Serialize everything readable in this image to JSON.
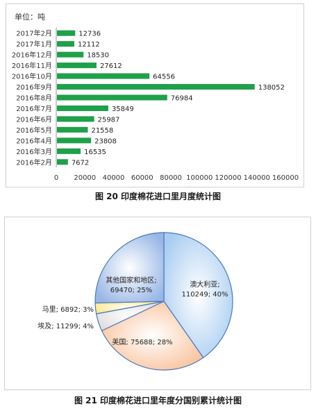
{
  "chart_data": [
    {
      "type": "bar",
      "orientation": "horizontal",
      "unit_label": "单位：吨",
      "categories": [
        "2017年2月",
        "2017年1月",
        "2016年12月",
        "2016年11月",
        "2016年10月",
        "2016年9月",
        "2016年8月",
        "2016年7月",
        "2016年6月",
        "2016年5月",
        "2016年4月",
        "2016年3月",
        "2016年2月"
      ],
      "values": [
        12736,
        12112,
        18530,
        27612,
        64556,
        138052,
        76984,
        35849,
        25987,
        21558,
        23808,
        16535,
        7672
      ],
      "xlim": [
        0,
        160000
      ],
      "xticks": [
        "0",
        "20000",
        "40000",
        "60000",
        "80000",
        "100000",
        "120000",
        "140000",
        "160000"
      ],
      "grid": false,
      "bar_color": "#1fa04a",
      "caption": "图 20  印度棉花进口里月度统计图"
    },
    {
      "type": "pie",
      "slices": [
        {
          "label": "澳大利亚",
          "value": 110249,
          "percent": "40%",
          "color": "#a9cdf2"
        },
        {
          "label": "美国",
          "value": 75688,
          "percent": "28%",
          "color": "#f9c19a"
        },
        {
          "label": "埃及",
          "value": 11299,
          "percent": "4%",
          "color": "#dcdcdc"
        },
        {
          "label": "马里",
          "value": 6892,
          "percent": "3%",
          "color": "#fbe889"
        },
        {
          "label": "其他国家和地区",
          "value": 69470,
          "percent": "25%",
          "color": "#98b6e6"
        }
      ],
      "slice_labels": [
        {
          "line1": "澳大利亚;",
          "line2": "110249; 40%"
        },
        {
          "line1": "美国; 75688; 28%",
          "line2": ""
        },
        {
          "line1": "埃及; 11299; 4%",
          "line2": ""
        },
        {
          "line1": "马里; 6892; 3%",
          "line2": ""
        },
        {
          "line1": "其他国家和地区;",
          "line2": "69470; 25%"
        }
      ],
      "caption": "图 21  印度棉花进口里年度分国别累计统计图"
    }
  ]
}
